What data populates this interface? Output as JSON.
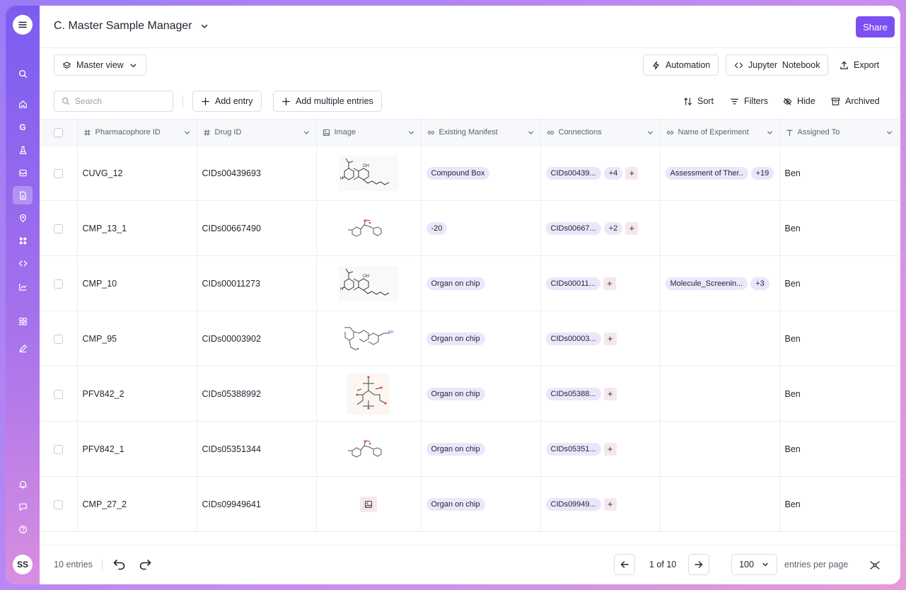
{
  "app": {
    "title": "C. Master Sample Manager",
    "share_label": "Share"
  },
  "sidebar": {
    "items": [
      {
        "icon": "search-icon"
      },
      {
        "icon": "home-icon"
      },
      {
        "icon": "g-letter-icon",
        "text": "G"
      },
      {
        "icon": "flask-icon"
      },
      {
        "icon": "inbox-icon"
      },
      {
        "icon": "document-icon"
      },
      {
        "icon": "location-icon"
      },
      {
        "icon": "apps-icon"
      },
      {
        "icon": "code-icon"
      },
      {
        "icon": "chart-icon"
      },
      {
        "icon": "grid-icon"
      },
      {
        "icon": "pen-icon"
      },
      {
        "icon": "bell-icon"
      },
      {
        "icon": "chat-icon"
      },
      {
        "icon": "help-icon"
      }
    ],
    "avatar": "SS"
  },
  "toolbar": {
    "view_label": "Master view",
    "automation_label": "Automation",
    "jupyter_label": "Jupyter  Notebook",
    "export_label": "Export",
    "search_placeholder": "Search",
    "add_entry_label": "Add entry",
    "add_multiple_label": "Add multiple entries",
    "sort_label": "Sort",
    "filters_label": "Filters",
    "hide_label": "Hide",
    "archived_label": "Archived"
  },
  "table": {
    "columns": [
      {
        "label": "Pharmacophore ID",
        "icon": "hash-icon"
      },
      {
        "label": "Drug ID",
        "icon": "hash-icon"
      },
      {
        "label": "Image",
        "icon": "image-icon"
      },
      {
        "label": "Existing Manifest",
        "icon": "link-icon"
      },
      {
        "label": "Connections",
        "icon": "link-icon"
      },
      {
        "label": "Name of Experiment",
        "icon": "link-icon"
      },
      {
        "label": "Assigned To",
        "icon": "text-icon"
      }
    ],
    "rows": [
      {
        "pharmacophore_id": "CUVG_12",
        "drug_id": "CIDs00439693",
        "image": "molecule-a",
        "manifest": "Compound Box",
        "connection": "CIDs00439...",
        "connection_more": "+4",
        "experiment": "Assessment of Ther..",
        "experiment_more": "+19",
        "assigned": "Ben"
      },
      {
        "pharmacophore_id": "CMP_13_1",
        "drug_id": "CIDs00667490",
        "image": "molecule-b",
        "manifest": "-20",
        "connection": "CIDs00667...",
        "connection_more": "+2",
        "experiment": "",
        "experiment_more": "",
        "assigned": "Ben"
      },
      {
        "pharmacophore_id": "CMP_10",
        "drug_id": "CIDs00011273",
        "image": "molecule-a",
        "manifest": "Organ on chip",
        "connection": "CIDs00011...",
        "connection_more": "",
        "experiment": "Molecule_Screenin...",
        "experiment_more": "+3",
        "assigned": "Ben"
      },
      {
        "pharmacophore_id": "CMP_95",
        "drug_id": "CIDs00003902",
        "image": "molecule-c",
        "manifest": "Organ on chip",
        "connection": "CIDs00003...",
        "connection_more": "",
        "experiment": "",
        "experiment_more": "",
        "assigned": "Ben"
      },
      {
        "pharmacophore_id": "PFV842_2",
        "drug_id": "CIDs05388992",
        "image": "molecule-d",
        "manifest": "Organ on chip",
        "connection": "CIDs05388...",
        "connection_more": "",
        "experiment": "",
        "experiment_more": "",
        "assigned": "Ben"
      },
      {
        "pharmacophore_id": "PFV842_1",
        "drug_id": "CIDs05351344",
        "image": "molecule-b",
        "manifest": "Organ on chip",
        "connection": "CIDs05351...",
        "connection_more": "",
        "experiment": "",
        "experiment_more": "",
        "assigned": "Ben"
      },
      {
        "pharmacophore_id": "CMP_27_2",
        "drug_id": "CIDs09949641",
        "image": "placeholder",
        "manifest": "Organ on chip",
        "connection": "CIDs09949...",
        "connection_more": "",
        "experiment": "",
        "experiment_more": "",
        "assigned": "Ben"
      }
    ]
  },
  "footer": {
    "entries": "10 entries",
    "page": "1 of 10",
    "per_page": "100",
    "per_page_label": "entries per page"
  },
  "colors": {
    "accent": "#7b4ff2",
    "pill": "#ece6fb",
    "plus_bg": "#f6e8ea"
  }
}
